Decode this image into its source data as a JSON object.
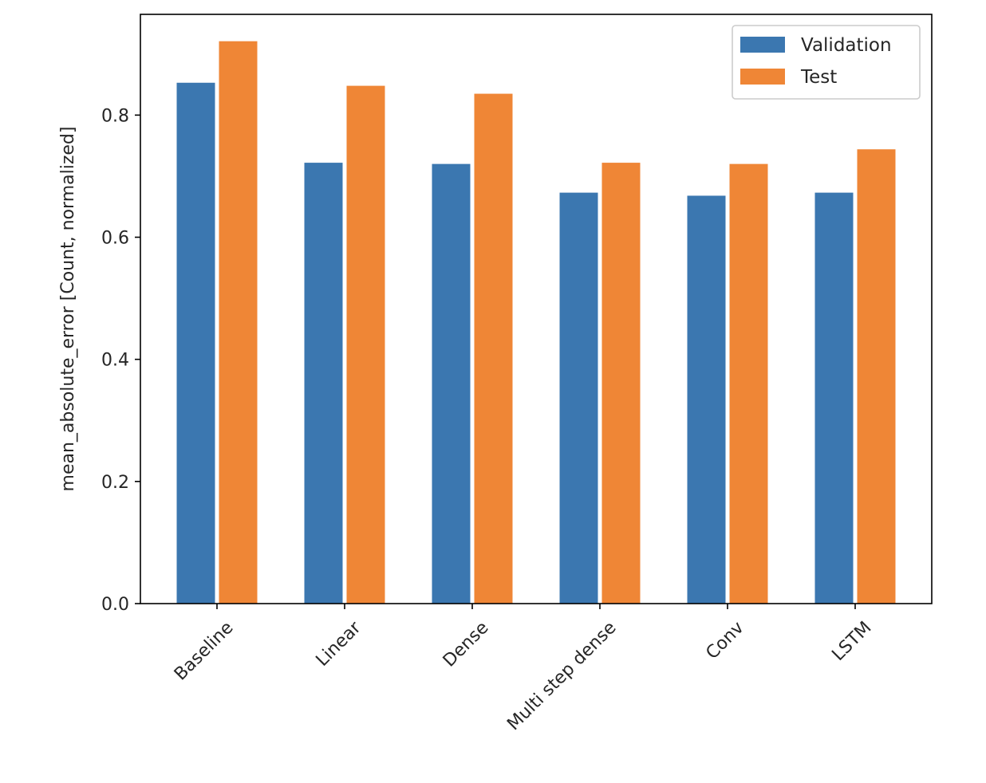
{
  "chart_data": {
    "type": "bar",
    "title": "",
    "xlabel": "",
    "ylabel": "mean_absolute_error [Count, normalized]",
    "categories": [
      "Baseline",
      "Linear",
      "Dense",
      "Multi step dense",
      "Conv",
      "LSTM"
    ],
    "series": [
      {
        "name": "Validation",
        "color": "#3b77b0",
        "values": [
          0.853,
          0.722,
          0.72,
          0.673,
          0.668,
          0.673
        ]
      },
      {
        "name": "Test",
        "color": "#ef8636",
        "values": [
          0.921,
          0.848,
          0.835,
          0.722,
          0.72,
          0.744
        ]
      }
    ],
    "ylim": [
      0,
      0.965
    ],
    "yticks": [
      "0.0",
      "0.2",
      "0.4",
      "0.6",
      "0.8"
    ],
    "xtick_rotation_deg": 45,
    "grid": false,
    "legend_position": "top-right"
  }
}
